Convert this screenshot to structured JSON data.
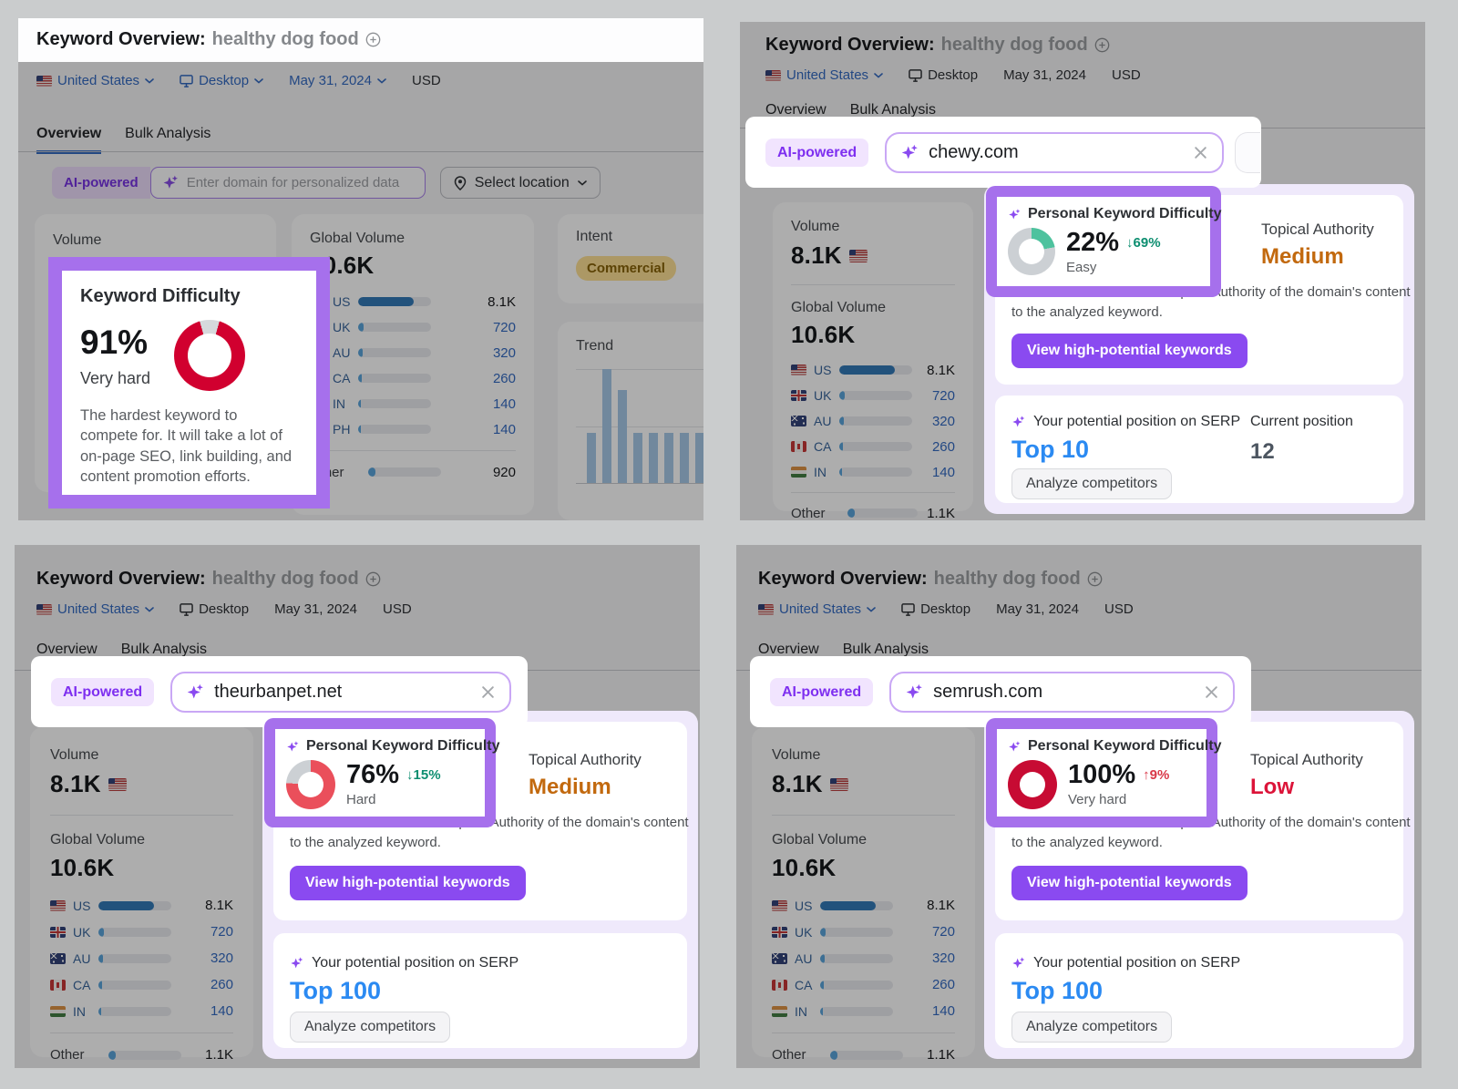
{
  "header": {
    "title": "Keyword Overview:",
    "keyword": "healthy dog food"
  },
  "filters": {
    "country": "United States",
    "device": "Desktop",
    "date": "May 31, 2024",
    "currency": "USD"
  },
  "tabs": {
    "overview": "Overview",
    "bulk": "Bulk Analysis"
  },
  "ai": {
    "label": "AI-powered",
    "placeholder": "Enter domain for personalized data",
    "select_location": "Select location"
  },
  "shared": {
    "volume_label": "Volume",
    "volume_value": "8.1K",
    "global_label": "Global Volume",
    "global_value": "10.6K",
    "other_label": "Other",
    "pkd_title": "Personal Keyword Difficulty",
    "topical_label": "Topical Authority",
    "note_line1": "We use AI to indicate the Topical Authority of the domain's content",
    "note_line2": "to the analyzed keyword.",
    "view_btn": "View high-potential keywords",
    "serp_label": "Your potential position on SERP",
    "analyze_btn": "Analyze competitors"
  },
  "countries": [
    {
      "code": "US",
      "value": "8.1K",
      "bar": "76%"
    },
    {
      "code": "UK",
      "value": "720",
      "bar": "8%"
    },
    {
      "code": "AU",
      "value": "320",
      "bar": "6%"
    },
    {
      "code": "CA",
      "value": "260",
      "bar": "5%"
    },
    {
      "code": "IN",
      "value": "140",
      "bar": "4%"
    }
  ],
  "other": {
    "value": "1.1K",
    "bar": "10%"
  },
  "p1": {
    "countries": [
      {
        "code": "US",
        "value": "8.1K",
        "bar": "76%"
      },
      {
        "code": "UK",
        "value": "720",
        "bar": "8%"
      },
      {
        "code": "AU",
        "value": "320",
        "bar": "6%"
      },
      {
        "code": "CA",
        "value": "260",
        "bar": "5%"
      },
      {
        "code": "IN",
        "value": "140",
        "bar": "4%"
      },
      {
        "code": "PH",
        "value": "140",
        "bar": "4%"
      }
    ],
    "other": {
      "value": "920",
      "bar": "10%"
    },
    "intent": {
      "label": "Intent",
      "badge": "Commercial"
    },
    "trend": {
      "label": "Trend",
      "bars": [
        44,
        100,
        82,
        44,
        44,
        44,
        44,
        44
      ]
    },
    "kd": {
      "title": "Keyword Difficulty",
      "value": "91%",
      "level": "Very hard",
      "desc": "The hardest keyword to compete for. It will take a lot of on-page SEO, link building, and content promotion efforts.",
      "percent": 91,
      "color": "#d1002f",
      "track": "#d6d9dc",
      "gap_centered": true
    }
  },
  "p2": {
    "domain": "chewy.com",
    "pkd": {
      "value": "22%",
      "delta": "↓69%",
      "level": "Easy",
      "percent": 22,
      "color": "#4ec29e",
      "track": "#ccd0d4"
    },
    "topical_value": "Medium",
    "serp_value": "Top 10",
    "current": {
      "label": "Current position",
      "value": "12"
    }
  },
  "p3": {
    "domain": "theurbanpet.net",
    "pkd": {
      "value": "76%",
      "delta": "↓15%",
      "level": "Hard",
      "percent": 76,
      "color": "#ea4f5b",
      "track": "#ccd0d4"
    },
    "topical_value": "Medium",
    "serp_value": "Top 100"
  },
  "p4": {
    "domain": "semrush.com",
    "pkd": {
      "value": "100%",
      "delta": "↑9%",
      "level": "Very hard",
      "percent": 100,
      "color": "#c70b33",
      "track": "#ccd0d4"
    },
    "topical_value": "Low",
    "serp_value": "Top 100"
  },
  "colors": {
    "highlight_border": "#a670ec",
    "accent_purple": "#8a4af0",
    "link_blue": "#2f6ac9",
    "serp_blue": "#2b8af2",
    "topical_medium": "#c2690e",
    "topical_low": "#dc1439",
    "delta_down": "#0d8e70",
    "delta_up": "#d93848",
    "kd_very_hard": "#d1002f",
    "pkd_easy": "#4ec29e",
    "pkd_hard": "#ea4f5b",
    "intent_badge_bg": "#ffdf8e"
  }
}
